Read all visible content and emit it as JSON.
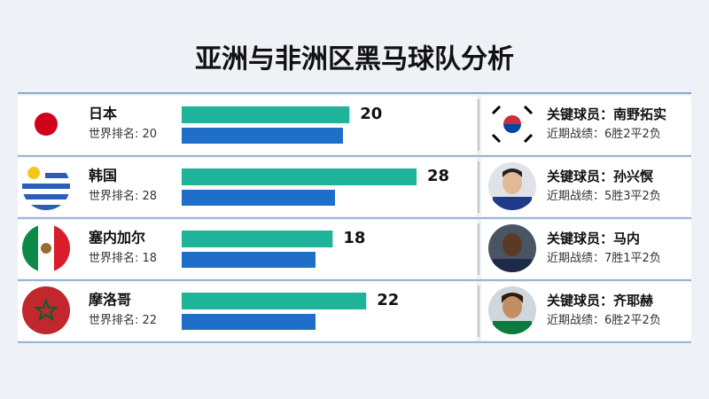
{
  "title": "亚洲与非洲区黑马球队分析",
  "rank_label": "世界排名: ",
  "player_label": "关键球员：",
  "record_label": "近期战绩：",
  "rows": [
    {
      "team": "日本",
      "rank": 20,
      "player": "南野拓实",
      "record": "6胜2平2负"
    },
    {
      "team": "韩国",
      "rank": 28,
      "player": "孙兴慏",
      "record": "5胜3平2负"
    },
    {
      "team": "塞内加尔",
      "rank": 18,
      "player": "马内",
      "record": "7胜1平2负"
    },
    {
      "team": "摩洛哥",
      "rank": 22,
      "player": "齐耶赫",
      "record": "6胜2平2负"
    }
  ]
}
